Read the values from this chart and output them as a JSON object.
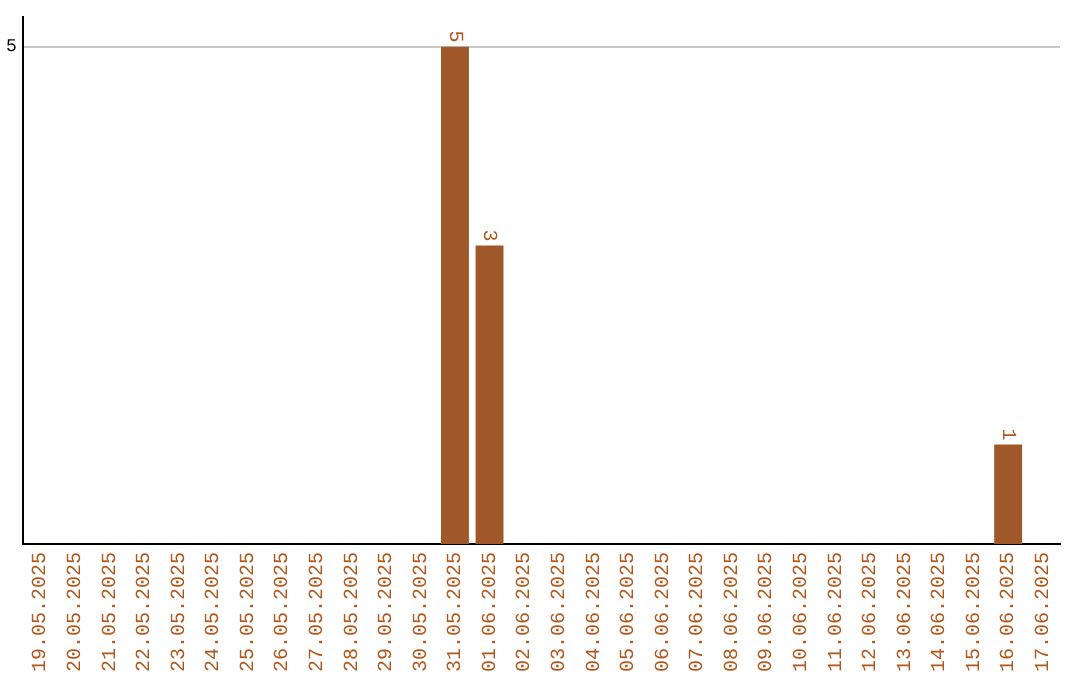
{
  "chart_data": {
    "type": "bar",
    "categories": [
      "19.05.2025",
      "20.05.2025",
      "21.05.2025",
      "22.05.2025",
      "23.05.2025",
      "24.05.2025",
      "25.05.2025",
      "26.05.2025",
      "27.05.2025",
      "28.05.2025",
      "29.05.2025",
      "30.05.2025",
      "31.05.2025",
      "01.06.2025",
      "02.06.2025",
      "03.06.2025",
      "04.06.2025",
      "05.06.2025",
      "06.06.2025",
      "07.06.2025",
      "08.06.2025",
      "09.06.2025",
      "10.06.2025",
      "11.06.2025",
      "12.06.2025",
      "13.06.2025",
      "14.06.2025",
      "15.06.2025",
      "16.06.2025",
      "17.06.2025"
    ],
    "values": [
      null,
      null,
      null,
      null,
      null,
      null,
      null,
      null,
      null,
      null,
      null,
      null,
      5,
      3,
      null,
      null,
      null,
      null,
      null,
      null,
      null,
      null,
      null,
      null,
      null,
      null,
      null,
      null,
      1,
      null
    ],
    "color": "#a0572a",
    "ylim": [
      0,
      5.3
    ],
    "yticks": [
      5
    ],
    "grid": "y",
    "data_labels": true,
    "legend": false
  }
}
